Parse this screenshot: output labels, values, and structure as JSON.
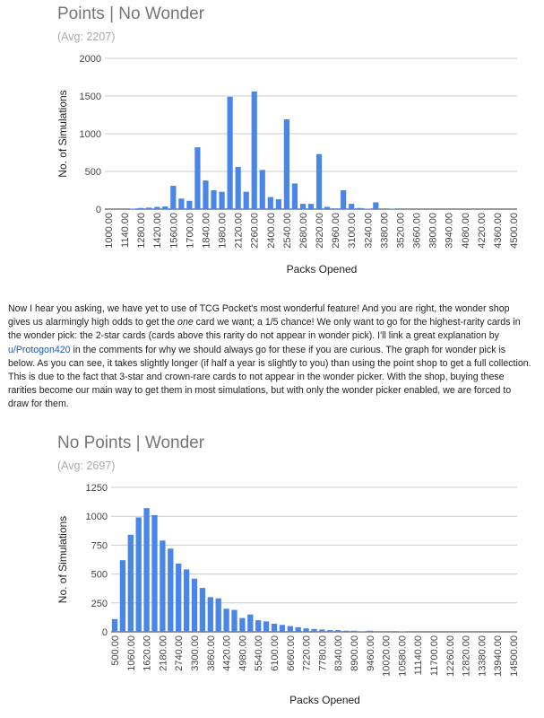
{
  "chart_data": [
    {
      "type": "bar",
      "title": "Points | No Wonder",
      "subtitle": "(Avg: 2207)",
      "xlabel": "Packs Opened",
      "ylabel": "No. of Simulations",
      "ylim": [
        0,
        2000
      ],
      "yticks": [
        0,
        500,
        1000,
        1500,
        2000
      ],
      "grid": true,
      "legend": "none",
      "bar_color": "#4a86e8",
      "x_tick_labels": [
        "1000.00",
        "1140.00",
        "1280.00",
        "1420.00",
        "1560.00",
        "1700.00",
        "1840.00",
        "1980.00",
        "2120.00",
        "2260.00",
        "2400.00",
        "2540.00",
        "2680.00",
        "2820.00",
        "2960.00",
        "3100.00",
        "3240.00",
        "3380.00",
        "3520.00",
        "3660.00",
        "3800.00",
        "3940.00",
        "4080.00",
        "4220.00",
        "4360.00",
        "4500.00"
      ],
      "x": [
        1000,
        1070,
        1140,
        1210,
        1280,
        1350,
        1420,
        1490,
        1560,
        1630,
        1700,
        1770,
        1840,
        1910,
        1980,
        2050,
        2120,
        2190,
        2260,
        2330,
        2400,
        2470,
        2540,
        2610,
        2680,
        2750,
        2820,
        2890,
        2960,
        3030,
        3100,
        3170,
        3240,
        3310,
        3380,
        3450,
        3520,
        3590,
        3660,
        3730,
        3800,
        3870,
        3940,
        4010,
        4080,
        4150,
        4220,
        4290,
        4360,
        4430,
        4500
      ],
      "values": [
        0,
        0,
        0,
        5,
        15,
        20,
        30,
        35,
        310,
        140,
        110,
        820,
        380,
        250,
        230,
        1490,
        560,
        230,
        1560,
        520,
        160,
        130,
        1190,
        340,
        70,
        70,
        730,
        30,
        10,
        250,
        70,
        15,
        5,
        90,
        0,
        5,
        0,
        0,
        0,
        0,
        0,
        0,
        0,
        0,
        0,
        0,
        0,
        0,
        0,
        0,
        0
      ]
    },
    {
      "type": "bar",
      "title": "No Points | Wonder",
      "subtitle": "(Avg: 2697)",
      "xlabel": "Packs Opened",
      "ylabel": "No. of Simulations",
      "ylim": [
        0,
        1250
      ],
      "yticks": [
        0,
        250,
        500,
        750,
        1000,
        1250
      ],
      "grid": true,
      "legend": "none",
      "bar_color": "#4a86e8",
      "x_tick_labels": [
        "500.00",
        "1060.00",
        "1620.00",
        "2180.00",
        "2740.00",
        "3300.00",
        "3860.00",
        "4420.00",
        "4980.00",
        "5540.00",
        "6100.00",
        "6660.00",
        "7220.00",
        "7780.00",
        "8340.00",
        "8900.00",
        "9460.00",
        "10020.00",
        "10580.00",
        "11140.00",
        "11700.00",
        "12260.00",
        "12820.00",
        "13380.00",
        "13940.00",
        "14500.00"
      ],
      "x": [
        500,
        780,
        1060,
        1340,
        1620,
        1900,
        2180,
        2460,
        2740,
        3020,
        3300,
        3580,
        3860,
        4140,
        4420,
        4700,
        4980,
        5260,
        5540,
        5820,
        6100,
        6380,
        6660,
        6940,
        7220,
        7500,
        7780,
        8060,
        8340,
        8620,
        8900,
        9180,
        9460,
        9740,
        10020,
        10300,
        10580,
        10860,
        11140,
        11420,
        11700,
        11980,
        12260,
        12540,
        12820,
        13100,
        13380,
        13660,
        13940,
        14220,
        14500
      ],
      "values": [
        110,
        620,
        840,
        990,
        1070,
        1010,
        790,
        720,
        590,
        540,
        460,
        380,
        300,
        290,
        200,
        190,
        120,
        150,
        100,
        90,
        70,
        60,
        50,
        40,
        30,
        25,
        20,
        15,
        15,
        10,
        10,
        5,
        10,
        0,
        0,
        0,
        5,
        0,
        0,
        0,
        0,
        0,
        0,
        0,
        0,
        0,
        0,
        0,
        0,
        0,
        0
      ]
    }
  ],
  "paragraph": {
    "part1": "Now I hear you asking, we have yet to use of TCG Pocket's most wonderful feature! And you are right, the wonder shop gives us alarmingly high odds to get the ",
    "emph": "one",
    "part2": " card we want; a 1/5 chance! We only want to go for the highest-rarity cards in the wonder pick: the 2-star cards (cards above this rarity do not appear in wonder pick). I'll link a great explanation by ",
    "link": "u/Protogon420",
    "part3": " in the comments for why we should always go for these if you are curious. The graph for wonder pick is below. As you can see, it takes slightly longer (if half a year is slightly to you) than using the point shop to get a full collection. This is due to the fact that 3-star and crown-rare cards to not appear in the wonder picker. With the shop, buying these rarities become our main way to get them in most simulations, but with only the wonder picker enabled, we are forced to draw for them."
  }
}
